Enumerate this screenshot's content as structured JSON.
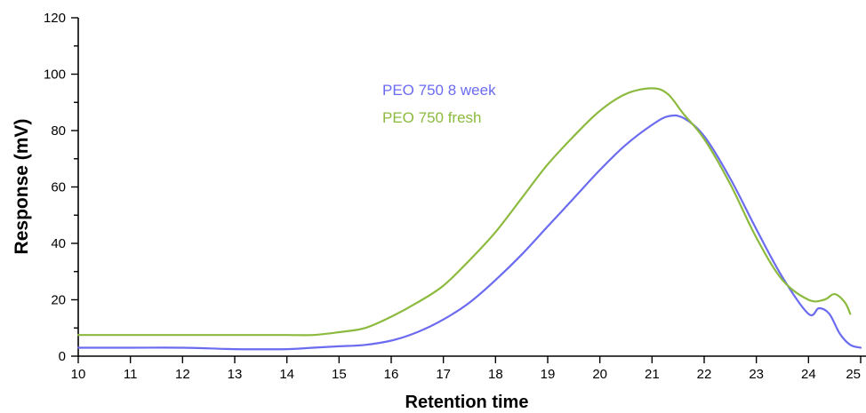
{
  "chart_data": {
    "type": "line",
    "title": "",
    "xlabel": "Retention time",
    "ylabel": "Response (mV)",
    "xlim": [
      10,
      25
    ],
    "ylim": [
      0,
      120
    ],
    "x_ticks": [
      "10",
      "11",
      "12",
      "13",
      "14",
      "15",
      "16",
      "17",
      "18",
      "19",
      "20",
      "21",
      "22",
      "23",
      "24",
      "25"
    ],
    "y_ticks": [
      "0",
      "20",
      "40",
      "60",
      "80",
      "100",
      "120"
    ],
    "grid": false,
    "legend_position": "top-center",
    "series": [
      {
        "name": "PEO 750 8 week",
        "color": "#6b6bf0",
        "x": [
          10,
          11,
          12,
          13,
          14,
          14.5,
          15,
          15.5,
          16,
          16.5,
          17,
          17.5,
          18,
          18.5,
          19,
          19.5,
          20,
          20.5,
          21,
          21.3,
          21.6,
          22,
          22.5,
          23,
          23.5,
          24,
          24.2,
          24.4,
          24.6,
          24.8,
          25
        ],
        "values": [
          3,
          3,
          3,
          2.5,
          2.5,
          3,
          3.5,
          4,
          5.5,
          8.5,
          13,
          19,
          27,
          36,
          46,
          56,
          66,
          75,
          82,
          85,
          84.5,
          78,
          63,
          45,
          28,
          15,
          17,
          15,
          8,
          4,
          3
        ]
      },
      {
        "name": "PEO 750 fresh",
        "color": "#8cba3e",
        "x": [
          10,
          11,
          12,
          13,
          14,
          14.5,
          15,
          15.5,
          16,
          16.5,
          17,
          17.5,
          18,
          18.5,
          19,
          19.5,
          20,
          20.5,
          21,
          21.3,
          21.6,
          22,
          22.5,
          23,
          23.5,
          24,
          24.3,
          24.5,
          24.7,
          24.8
        ],
        "values": [
          7.5,
          7.5,
          7.5,
          7.5,
          7.5,
          7.5,
          8.5,
          10,
          14,
          19,
          25,
          34,
          44,
          56,
          68,
          78,
          87,
          93,
          95,
          93,
          86,
          77,
          61,
          42,
          27,
          20,
          20,
          22,
          19,
          15
        ]
      }
    ]
  }
}
